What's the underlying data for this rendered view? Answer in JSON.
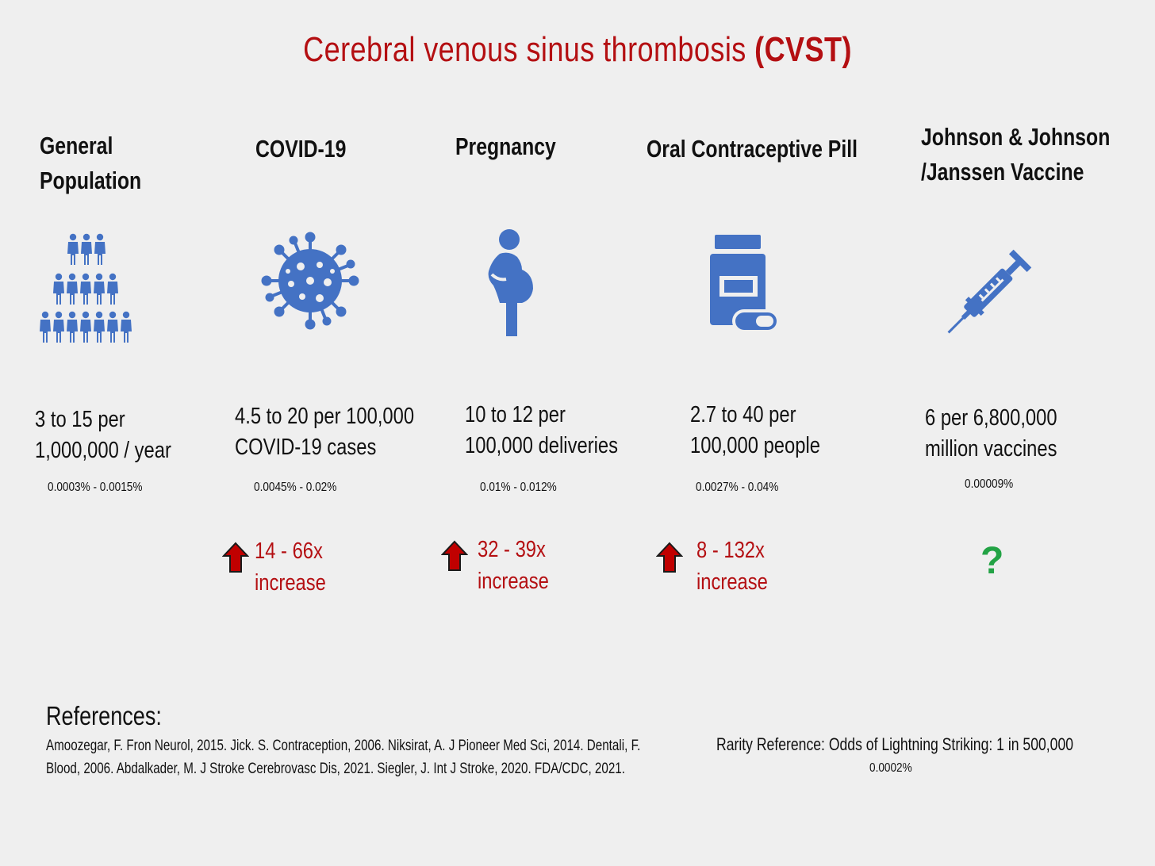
{
  "title": {
    "main": "Cerebral venous sinus thrombosis ",
    "abbr": "(CVST)"
  },
  "columns": [
    {
      "category_line1": "General",
      "category_line2": "Population",
      "icon": "people-pyramid-icon",
      "stat_line1": "3 to 15 per",
      "stat_line2": "1,000,000 / year",
      "percent": "0.0003% - 0.0015%"
    },
    {
      "category_line1": "COVID-19",
      "icon": "virus-icon",
      "stat_line1": "4.5 to 20 per 100,000",
      "stat_line2": "COVID-19 cases",
      "percent": "0.0045% - 0.02%",
      "increase_line1": "14 - 66x",
      "increase_line2": "increase"
    },
    {
      "category_line1": "Pregnancy",
      "icon": "pregnant-woman-icon",
      "stat_line1": "10 to 12 per",
      "stat_line2": "100,000 deliveries",
      "percent": "0.01% - 0.012%",
      "increase_line1": "32 - 39x",
      "increase_line2": "increase"
    },
    {
      "category_line1": "Oral Contraceptive Pill",
      "icon": "pill-bottle-icon",
      "stat_line1": "2.7 to 40 per",
      "stat_line2": "100,000 people",
      "percent": "0.0027% - 0.04%",
      "increase_line1": "8 - 132x",
      "increase_line2": "increase"
    },
    {
      "category_line1": "Johnson & Johnson",
      "category_line2": "/Janssen Vaccine",
      "icon": "syringe-icon",
      "stat_line1": "6 per 6,800,000",
      "stat_line2": "million vaccines",
      "percent": "0.00009%",
      "unknown_mark": "?"
    }
  ],
  "references": {
    "heading": "References:",
    "line1": "Amoozegar, F. Fron Neurol, 2015. Jick. S. Contraception, 2006. Niksirat, A. J Pioneer Med Sci, 2014. Dentali, F.",
    "line2": "Blood, 2006. Abdalkader, M. J Stroke Cerebrovasc Dis, 2021. Siegler, J. Int J Stroke, 2020.  FDA/CDC, 2021."
  },
  "rarity": {
    "text": "Rarity Reference: Odds of Lightning Striking: 1 in 500,000",
    "percent": "0.0002%"
  },
  "colors": {
    "title": "#b40f12",
    "icon": "#4472c4",
    "increase": "#b40f12",
    "arrow": "#c00000",
    "question": "#23a345",
    "background": "#efefef"
  }
}
